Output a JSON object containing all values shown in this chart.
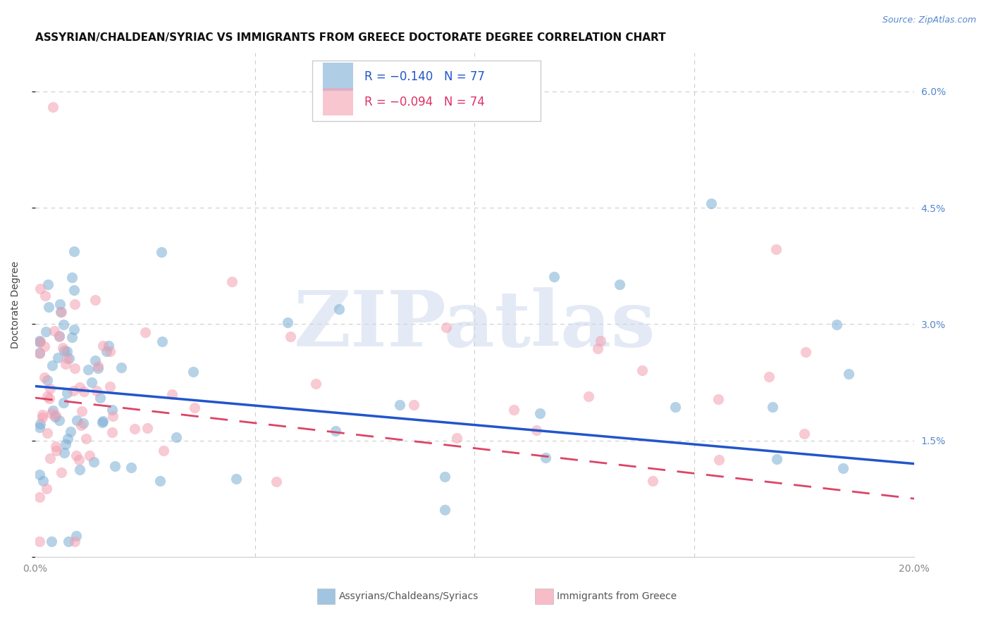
{
  "title": "ASSYRIAN/CHALDEAN/SYRIAC VS IMMIGRANTS FROM GREECE DOCTORATE DEGREE CORRELATION CHART",
  "source": "Source: ZipAtlas.com",
  "ylabel": "Doctorate Degree",
  "right_ytick_labels": [
    "1.5%",
    "3.0%",
    "4.5%",
    "6.0%"
  ],
  "right_ytick_values": [
    0.015,
    0.03,
    0.045,
    0.06
  ],
  "xlim": [
    0.0,
    0.2
  ],
  "ylim": [
    0.0,
    0.065
  ],
  "xtick_labels": [
    "0.0%",
    "",
    "",
    "",
    "20.0%"
  ],
  "xtick_values": [
    0.0,
    0.05,
    0.1,
    0.15,
    0.2
  ],
  "blue_color": "#7aadd4",
  "pink_color": "#f4a0b0",
  "blue_line_color": "#2255cc",
  "pink_line_color": "#dd4466",
  "blue_label": "Assyrians/Chaldeans/Syriacs",
  "pink_label": "Immigrants from Greece",
  "legend_R_blue": "-0.140",
  "legend_N_blue": "77",
  "legend_R_pink": "-0.094",
  "legend_N_pink": "74",
  "blue_line_x0": 0.0,
  "blue_line_y0": 0.022,
  "blue_line_x1": 0.2,
  "blue_line_y1": 0.012,
  "pink_line_x0": 0.0,
  "pink_line_y0": 0.0205,
  "pink_line_x1": 0.2,
  "pink_line_y1": 0.0075,
  "watermark": "ZIPatlas",
  "background_color": "#ffffff",
  "grid_color": "#cccccc",
  "title_fontsize": 11,
  "source_fontsize": 9,
  "axis_label_fontsize": 10,
  "tick_fontsize": 10,
  "legend_fontsize": 12
}
